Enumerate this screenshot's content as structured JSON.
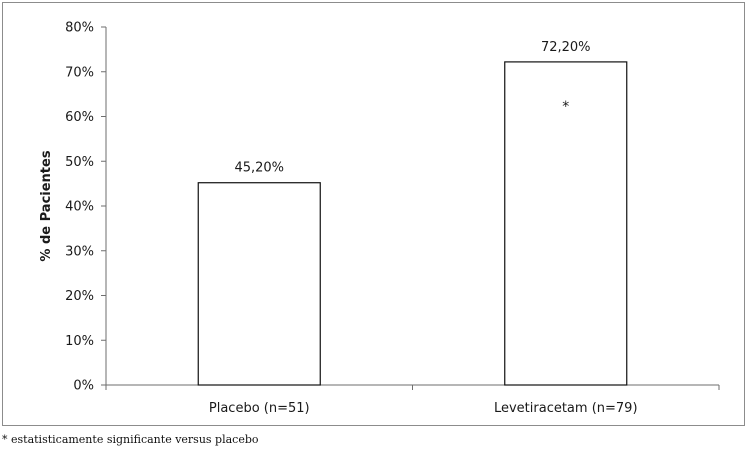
{
  "chart_data": {
    "type": "bar",
    "categories": [
      "Placebo (n=51)",
      "Levetiracetam (n=79)"
    ],
    "values": [
      45.2,
      72.2
    ],
    "data_labels": [
      "45,20%",
      "72,20%"
    ],
    "ylabel": "% de Pacientes",
    "xlabel": "",
    "ylim": [
      0,
      80
    ],
    "y_ticks": [
      "0%",
      "10%",
      "20%",
      "30%",
      "40%",
      "50%",
      "60%",
      "70%",
      "80%"
    ],
    "annotations": [
      {
        "category": "Levetiracetam (n=79)",
        "text": "*"
      }
    ],
    "grid": false
  },
  "footnote": "* estatisticamente significante versus placebo"
}
